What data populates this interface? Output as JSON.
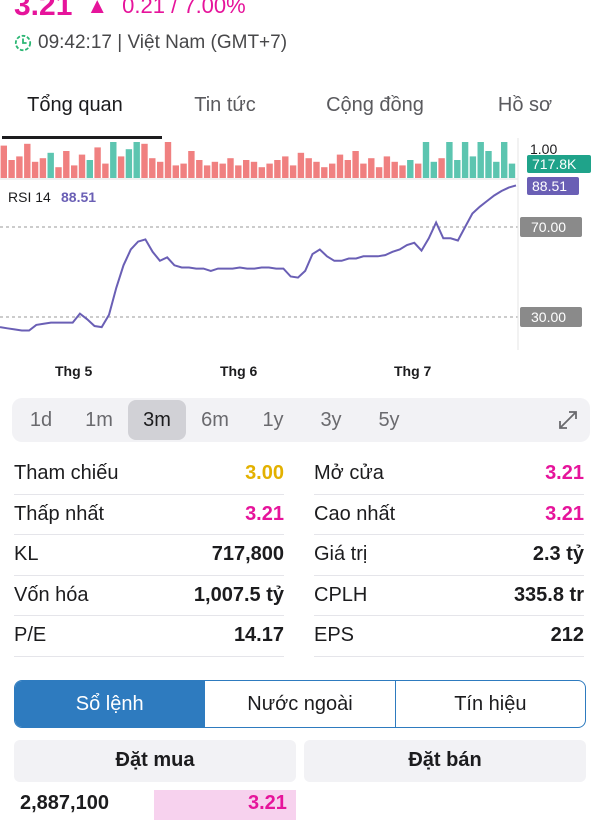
{
  "header": {
    "price": "3.21",
    "change": "0.21 / 7.00%",
    "time": "09:42:17 | Việt Nam (GMT+7)",
    "up_color": "#e6149b"
  },
  "tabs": [
    {
      "label": "Tổng quan",
      "active": true
    },
    {
      "label": "Tin tức",
      "active": false
    },
    {
      "label": "Cộng đồng",
      "active": false
    },
    {
      "label": "Hồ sơ",
      "active": false
    }
  ],
  "chart_data": {
    "type": "line",
    "volume_label": "717.8K",
    "volume_top_tick": "1.00",
    "rsi_label": "RSI 14",
    "rsi_value": "88.51",
    "ref_lines": [
      {
        "label": "70.00",
        "value": 70
      },
      {
        "label": "30.00",
        "value": 30
      }
    ],
    "x_ticks": [
      "Thg 5",
      "Thg 6",
      "Thg 7"
    ],
    "rsi_series": [
      25.5,
      25,
      24.5,
      24,
      24,
      26.5,
      27,
      27.5,
      27.5,
      27.5,
      27.5,
      31.5,
      29,
      26,
      25.5,
      31,
      43,
      53,
      60,
      63.5,
      64.5,
      59,
      55,
      56.5,
      53,
      52,
      52,
      51.5,
      51.5,
      50.5,
      51.5,
      51.5,
      51.5,
      52,
      51.5,
      51.5,
      52,
      52,
      51.5,
      51.5,
      48,
      47.5,
      50.5,
      58,
      60,
      57,
      55,
      55,
      56,
      56,
      57,
      57,
      57,
      57.5,
      59,
      60,
      62,
      63,
      59.5,
      65,
      72,
      65,
      65,
      64,
      70,
      76,
      79,
      81.5,
      84,
      86,
      87.5,
      88.51
    ],
    "volume_bars": [
      {
        "v": 0.9,
        "c": "#f08080"
      },
      {
        "v": 0.5,
        "c": "#f08080"
      },
      {
        "v": 0.6,
        "c": "#f08080"
      },
      {
        "v": 0.95,
        "c": "#f08080"
      },
      {
        "v": 0.45,
        "c": "#f08080"
      },
      {
        "v": 0.55,
        "c": "#f08080"
      },
      {
        "v": 0.7,
        "c": "#5cc5b0"
      },
      {
        "v": 0.3,
        "c": "#f08080"
      },
      {
        "v": 0.75,
        "c": "#f08080"
      },
      {
        "v": 0.35,
        "c": "#f08080"
      },
      {
        "v": 0.65,
        "c": "#f08080"
      },
      {
        "v": 0.5,
        "c": "#5cc5b0"
      },
      {
        "v": 0.85,
        "c": "#f08080"
      },
      {
        "v": 0.4,
        "c": "#f08080"
      },
      {
        "v": 1.0,
        "c": "#5cc5b0"
      },
      {
        "v": 0.6,
        "c": "#f08080"
      },
      {
        "v": 0.8,
        "c": "#5cc5b0"
      },
      {
        "v": 1.0,
        "c": "#5cc5b0"
      },
      {
        "v": 0.95,
        "c": "#f08080"
      },
      {
        "v": 0.55,
        "c": "#f08080"
      },
      {
        "v": 0.45,
        "c": "#f08080"
      },
      {
        "v": 1.0,
        "c": "#f08080"
      },
      {
        "v": 0.35,
        "c": "#f08080"
      },
      {
        "v": 0.4,
        "c": "#f08080"
      },
      {
        "v": 0.75,
        "c": "#f08080"
      },
      {
        "v": 0.5,
        "c": "#f08080"
      },
      {
        "v": 0.35,
        "c": "#f08080"
      },
      {
        "v": 0.45,
        "c": "#f08080"
      },
      {
        "v": 0.4,
        "c": "#f08080"
      },
      {
        "v": 0.55,
        "c": "#f08080"
      },
      {
        "v": 0.35,
        "c": "#f08080"
      },
      {
        "v": 0.5,
        "c": "#f08080"
      },
      {
        "v": 0.45,
        "c": "#f08080"
      },
      {
        "v": 0.3,
        "c": "#f08080"
      },
      {
        "v": 0.4,
        "c": "#f08080"
      },
      {
        "v": 0.5,
        "c": "#f08080"
      },
      {
        "v": 0.6,
        "c": "#f08080"
      },
      {
        "v": 0.35,
        "c": "#f08080"
      },
      {
        "v": 0.7,
        "c": "#f08080"
      },
      {
        "v": 0.55,
        "c": "#f08080"
      },
      {
        "v": 0.45,
        "c": "#f08080"
      },
      {
        "v": 0.3,
        "c": "#f08080"
      },
      {
        "v": 0.4,
        "c": "#f08080"
      },
      {
        "v": 0.65,
        "c": "#f08080"
      },
      {
        "v": 0.5,
        "c": "#f08080"
      },
      {
        "v": 0.75,
        "c": "#f08080"
      },
      {
        "v": 0.4,
        "c": "#f08080"
      },
      {
        "v": 0.55,
        "c": "#f08080"
      },
      {
        "v": 0.3,
        "c": "#f08080"
      },
      {
        "v": 0.6,
        "c": "#f08080"
      },
      {
        "v": 0.45,
        "c": "#f08080"
      },
      {
        "v": 0.35,
        "c": "#f08080"
      },
      {
        "v": 0.5,
        "c": "#5cc5b0"
      },
      {
        "v": 0.4,
        "c": "#f08080"
      },
      {
        "v": 1.0,
        "c": "#5cc5b0"
      },
      {
        "v": 0.45,
        "c": "#5cc5b0"
      },
      {
        "v": 0.55,
        "c": "#f08080"
      },
      {
        "v": 1.0,
        "c": "#5cc5b0"
      },
      {
        "v": 0.5,
        "c": "#5cc5b0"
      },
      {
        "v": 1.0,
        "c": "#5cc5b0"
      },
      {
        "v": 0.6,
        "c": "#5cc5b0"
      },
      {
        "v": 1.0,
        "c": "#5cc5b0"
      },
      {
        "v": 0.75,
        "c": "#5cc5b0"
      },
      {
        "v": 0.45,
        "c": "#5cc5b0"
      },
      {
        "v": 1.0,
        "c": "#5cc5b0"
      },
      {
        "v": 0.4,
        "c": "#5cc5b0"
      }
    ],
    "rsi_color": "#6a5fb5",
    "rsi_value_bg": "#6a5fb5",
    "volume_value_bg": "#1fa38a"
  },
  "ranges": [
    {
      "label": "1d",
      "active": false
    },
    {
      "label": "1m",
      "active": false
    },
    {
      "label": "3m",
      "active": true
    },
    {
      "label": "6m",
      "active": false
    },
    {
      "label": "1y",
      "active": false
    },
    {
      "label": "3y",
      "active": false
    },
    {
      "label": "5y",
      "active": false
    }
  ],
  "stats": [
    [
      {
        "label": "Tham chiếu",
        "value": "3.00",
        "style": "ref"
      },
      {
        "label": "Mở cửa",
        "value": "3.21",
        "style": "pink"
      }
    ],
    [
      {
        "label": "Thấp nhất",
        "value": "3.21",
        "style": "pink"
      },
      {
        "label": "Cao nhất",
        "value": "3.21",
        "style": "pink"
      }
    ],
    [
      {
        "label": "KL",
        "value": "717,800",
        "style": ""
      },
      {
        "label": "Giá trị",
        "value": "2.3 tỷ",
        "style": ""
      }
    ],
    [
      {
        "label": "Vốn hóa",
        "value": "1,007.5 tỷ",
        "style": ""
      },
      {
        "label": "CPLH",
        "value": "335.8 tr",
        "style": ""
      }
    ],
    [
      {
        "label": "P/E",
        "value": "14.17",
        "style": ""
      },
      {
        "label": "EPS",
        "value": "212",
        "style": ""
      }
    ]
  ],
  "order_tabs": [
    {
      "label": "Sổ lệnh",
      "active": true
    },
    {
      "label": "Nước ngoài",
      "active": false
    },
    {
      "label": "Tín hiệu",
      "active": false
    }
  ],
  "book": {
    "buy_header": "Đặt mua",
    "sell_header": "Đặt bán",
    "first_buy_volume": "2,887,100",
    "first_buy_price": "3.21"
  }
}
